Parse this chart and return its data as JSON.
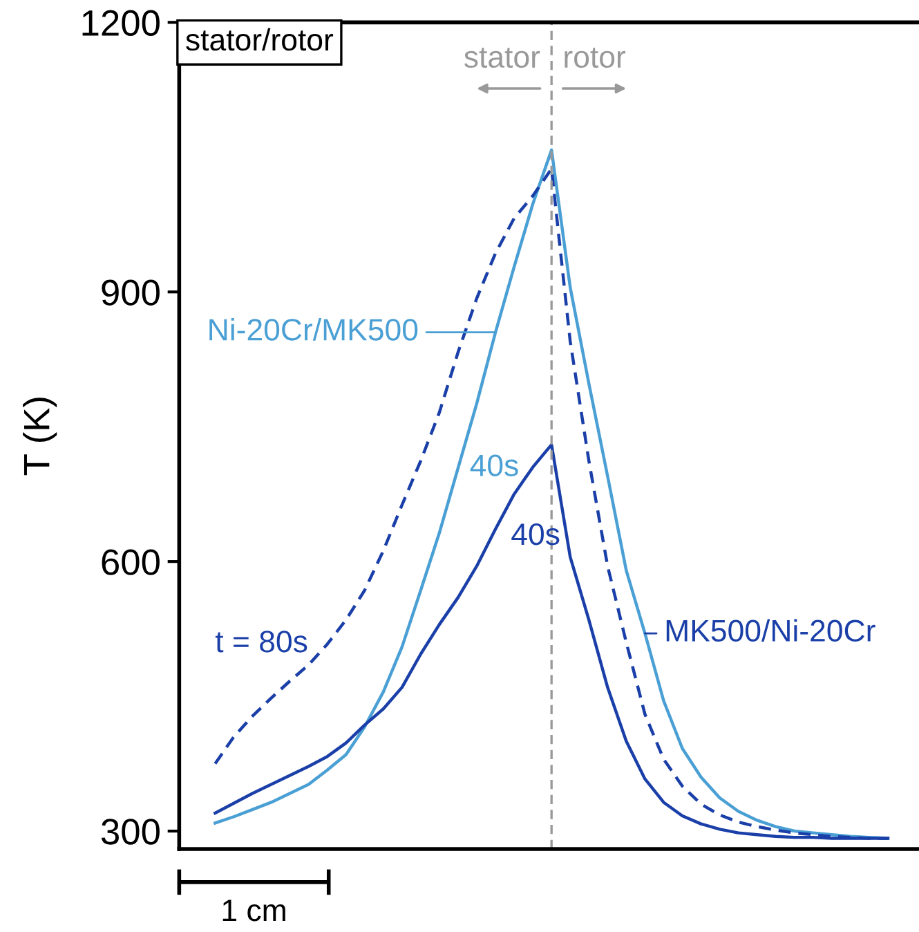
{
  "chart_data": {
    "type": "line",
    "title": "stator/rotor",
    "ylabel": "T (K)",
    "categories": [
      null,
      null,
      null,
      null,
      null,
      null,
      null,
      null,
      null,
      null,
      null,
      null,
      null,
      null,
      null,
      null,
      null,
      null,
      null,
      null,
      null,
      null,
      null,
      null,
      null,
      null,
      null,
      null,
      null,
      null,
      null,
      null,
      null,
      null,
      null,
      null,
      null
    ],
    "ylim": [
      280,
      1200
    ],
    "yticks": [
      300,
      600,
      900,
      1200
    ],
    "tick_labels": "y",
    "line_style": "solid",
    "annotations": [
      "stator",
      "rotor",
      "1 cm",
      "Ni-20Cr/MK500",
      "MK500/Ni-20Cr"
    ],
    "series": [
      {
        "name": "40s",
        "color": "#4a9fd4",
        "values": [
          309,
          316,
          324,
          332,
          342,
          352,
          368,
          385,
          416,
          455,
          505,
          568,
          632,
          704,
          776,
          855,
          928,
          998,
          1058,
          905,
          798,
          695,
          590,
          520,
          445,
          392,
          360,
          337,
          322,
          312,
          305,
          300,
          298,
          296,
          294,
          293,
          292
        ]
      },
      {
        "name": "40s",
        "color": "#1a3fa8",
        "values": [
          320,
          331,
          342,
          352,
          362,
          372,
          383,
          398,
          418,
          436,
          460,
          497,
          530,
          560,
          595,
          636,
          675,
          705,
          730,
          605,
          535,
          460,
          400,
          358,
          332,
          317,
          308,
          302,
          298,
          296,
          294,
          293,
          293,
          292,
          292,
          292,
          292
        ]
      },
      {
        "name": "t = 80s",
        "color": "#1a3fa8",
        "line_style": "dashed",
        "values": [
          375,
          405,
          428,
          448,
          467,
          485,
          508,
          535,
          568,
          612,
          663,
          712,
          766,
          833,
          893,
          943,
          982,
          1007,
          1037,
          845,
          712,
          595,
          510,
          430,
          380,
          350,
          330,
          318,
          310,
          305,
          301,
          298,
          296,
          294,
          293,
          292,
          292
        ]
      }
    ]
  }
}
